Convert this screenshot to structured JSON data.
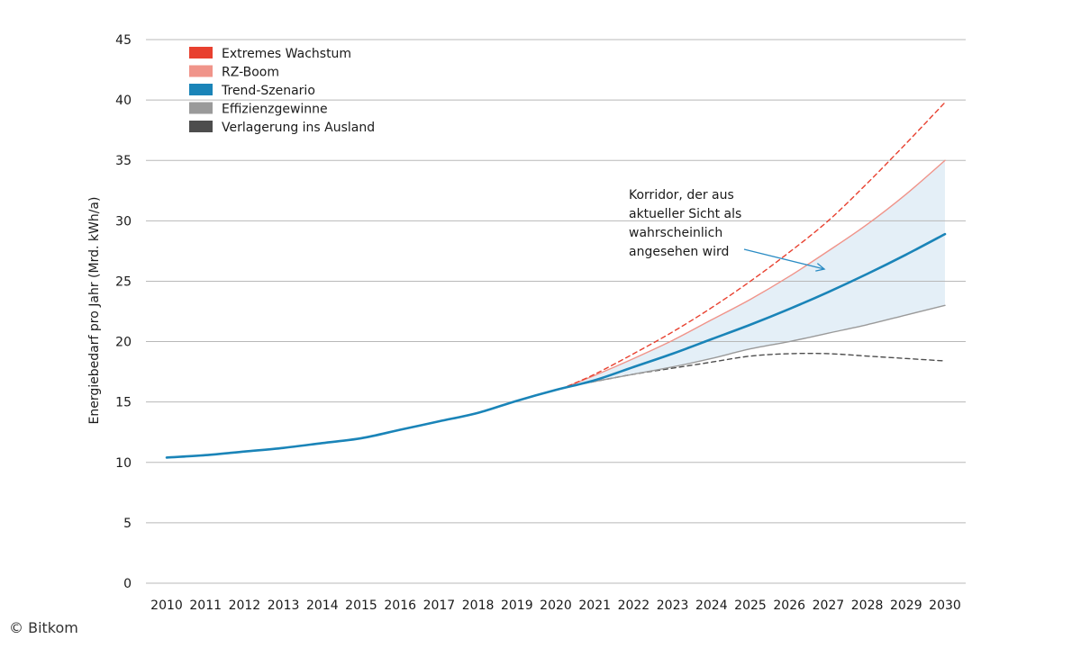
{
  "chart_data": {
    "type": "line",
    "title": "",
    "xlabel": "",
    "ylabel": "Energiebedarf pro Jahr (Mrd. kWh/a)",
    "ylim": [
      0,
      45
    ],
    "yticks": [
      0,
      5,
      10,
      15,
      20,
      25,
      30,
      35,
      40,
      45
    ],
    "x": [
      2010,
      2011,
      2012,
      2013,
      2014,
      2015,
      2016,
      2017,
      2018,
      2019,
      2020,
      2021,
      2022,
      2023,
      2024,
      2025,
      2026,
      2027,
      2028,
      2029,
      2030
    ],
    "x_labels": [
      "2010",
      "2011",
      "2012",
      "2013",
      "2014",
      "2015",
      "2016",
      "2017",
      "2018",
      "2019",
      "2020",
      "2021",
      "2022",
      "2023",
      "2024",
      "2025",
      "2026",
      "2027",
      "2028",
      "2029",
      "2030"
    ],
    "grid": true,
    "legend_position": "top-left",
    "series": [
      {
        "name": "Extremes Wachstum",
        "color": "#e8402f",
        "style": "dashed",
        "x": [
          2020.3,
          2021,
          2022,
          2023,
          2024,
          2025,
          2026,
          2027,
          2028,
          2029,
          2030
        ],
        "values": [
          16.3,
          17.3,
          19.0,
          20.8,
          22.8,
          25.0,
          27.4,
          30.0,
          33.1,
          36.4,
          39.8
        ]
      },
      {
        "name": "RZ-Boom",
        "color": "#f0948a",
        "style": "solid",
        "x": [
          2020.3,
          2021,
          2022,
          2023,
          2024,
          2025,
          2026,
          2027,
          2028,
          2029,
          2030
        ],
        "values": [
          16.3,
          17.2,
          18.6,
          20.1,
          21.8,
          23.5,
          25.4,
          27.5,
          29.7,
          32.2,
          35.0
        ]
      },
      {
        "name": "Trend-Szenario",
        "color": "#1a84b8",
        "style": "solid",
        "x": [
          2010,
          2011,
          2012,
          2013,
          2014,
          2015,
          2016,
          2017,
          2018,
          2019,
          2020,
          2021,
          2022,
          2023,
          2024,
          2025,
          2026,
          2027,
          2028,
          2029,
          2030
        ],
        "values": [
          10.4,
          10.6,
          10.9,
          11.2,
          11.6,
          12.0,
          12.7,
          13.4,
          14.1,
          15.1,
          16.0,
          16.8,
          17.9,
          19.0,
          20.2,
          21.4,
          22.7,
          24.1,
          25.6,
          27.2,
          28.9
        ]
      },
      {
        "name": "Effizienzgewinne",
        "color": "#9a9a9a",
        "style": "solid",
        "x": [
          2020.3,
          2021,
          2022,
          2023,
          2024,
          2025,
          2026,
          2027,
          2028,
          2029,
          2030
        ],
        "values": [
          16.3,
          16.7,
          17.3,
          17.9,
          18.6,
          19.4,
          20.0,
          20.7,
          21.4,
          22.2,
          23.0
        ]
      },
      {
        "name": "Verlagerung ins Ausland",
        "color": "#4d4d4d",
        "style": "dashed",
        "x": [
          2020.3,
          2021,
          2022,
          2023,
          2024,
          2025,
          2026,
          2027,
          2028,
          2029,
          2030
        ],
        "values": [
          16.3,
          16.7,
          17.3,
          17.8,
          18.3,
          18.8,
          19.0,
          19.0,
          18.8,
          18.6,
          18.4
        ]
      }
    ],
    "corridor": {
      "lower_series": "Effizienzgewinne",
      "upper_series": "RZ-Boom",
      "color": "#e4eff7"
    },
    "annotation": {
      "lines": [
        "Korridor, der aus",
        "aktueller Sicht als",
        "wahrscheinlich",
        "angesehen wird"
      ],
      "arrow_color": "#2b8cc4",
      "arrow_to": [
        2026.9,
        26.0
      ]
    }
  },
  "credit": "© Bitkom"
}
